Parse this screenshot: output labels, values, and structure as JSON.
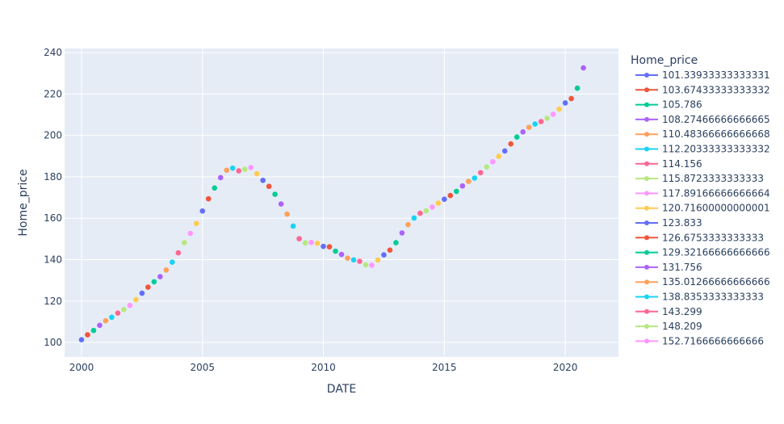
{
  "chart_data": {
    "type": "scatter",
    "title": "",
    "xlabel": "DATE",
    "ylabel": "Home_price",
    "xlim": [
      1999.3,
      2022.2
    ],
    "ylim": [
      93,
      242
    ],
    "x_ticks": [
      2000,
      2005,
      2010,
      2015,
      2020
    ],
    "y_ticks": [
      100,
      120,
      140,
      160,
      180,
      200,
      220,
      240
    ],
    "grid": true,
    "legend_placement": "right",
    "legend_title": "Home_price",
    "palette": [
      "#636efa",
      "#EF553B",
      "#00cc96",
      "#ab63fa",
      "#FFA15A",
      "#19d3f3",
      "#FF6692",
      "#B6E880",
      "#FF97FF",
      "#FECB52"
    ],
    "background": "#E5ECF6",
    "legend": [
      "101.33933333333331",
      "103.67433333333332",
      "105.786",
      "108.27466666666665",
      "110.48366666666668",
      "112.20333333333332",
      "114.156",
      "115.8723333333333",
      "117.89166666666664",
      "120.71600000000001",
      "123.833",
      "126.6753333333333",
      "129.32166666666666",
      "131.756",
      "135.01266666666666",
      "138.8353333333333",
      "143.299",
      "148.209",
      "152.7166666666666"
    ],
    "points": [
      {
        "x": 2000.0,
        "y": 101.3
      },
      {
        "x": 2000.25,
        "y": 103.7
      },
      {
        "x": 2000.5,
        "y": 105.8
      },
      {
        "x": 2000.75,
        "y": 108.3
      },
      {
        "x": 2001.0,
        "y": 110.5
      },
      {
        "x": 2001.25,
        "y": 112.2
      },
      {
        "x": 2001.5,
        "y": 114.2
      },
      {
        "x": 2001.75,
        "y": 115.9
      },
      {
        "x": 2002.0,
        "y": 117.9
      },
      {
        "x": 2002.25,
        "y": 120.7
      },
      {
        "x": 2002.5,
        "y": 123.8
      },
      {
        "x": 2002.75,
        "y": 126.7
      },
      {
        "x": 2003.0,
        "y": 129.3
      },
      {
        "x": 2003.25,
        "y": 131.8
      },
      {
        "x": 2003.5,
        "y": 135.0
      },
      {
        "x": 2003.75,
        "y": 138.8
      },
      {
        "x": 2004.0,
        "y": 143.3
      },
      {
        "x": 2004.25,
        "y": 148.2
      },
      {
        "x": 2004.5,
        "y": 152.7
      },
      {
        "x": 2004.75,
        "y": 157.5
      },
      {
        "x": 2005.0,
        "y": 163.5
      },
      {
        "x": 2005.25,
        "y": 169.4
      },
      {
        "x": 2005.5,
        "y": 174.6
      },
      {
        "x": 2005.75,
        "y": 179.6
      },
      {
        "x": 2006.0,
        "y": 183.2
      },
      {
        "x": 2006.25,
        "y": 184.2
      },
      {
        "x": 2006.5,
        "y": 182.9
      },
      {
        "x": 2006.75,
        "y": 183.6
      },
      {
        "x": 2007.0,
        "y": 184.5
      },
      {
        "x": 2007.25,
        "y": 181.5
      },
      {
        "x": 2007.5,
        "y": 178.3
      },
      {
        "x": 2007.75,
        "y": 175.4
      },
      {
        "x": 2008.0,
        "y": 171.6
      },
      {
        "x": 2008.25,
        "y": 166.9
      },
      {
        "x": 2008.5,
        "y": 162.0
      },
      {
        "x": 2008.75,
        "y": 156.2
      },
      {
        "x": 2009.0,
        "y": 150.1
      },
      {
        "x": 2009.25,
        "y": 148.1
      },
      {
        "x": 2009.5,
        "y": 148.3
      },
      {
        "x": 2009.75,
        "y": 147.9
      },
      {
        "x": 2010.0,
        "y": 146.4
      },
      {
        "x": 2010.25,
        "y": 146.2
      },
      {
        "x": 2010.5,
        "y": 144.1
      },
      {
        "x": 2010.75,
        "y": 142.5
      },
      {
        "x": 2011.0,
        "y": 140.7
      },
      {
        "x": 2011.25,
        "y": 139.9
      },
      {
        "x": 2011.5,
        "y": 139.2
      },
      {
        "x": 2011.75,
        "y": 137.5
      },
      {
        "x": 2012.0,
        "y": 137.3
      },
      {
        "x": 2012.25,
        "y": 139.8
      },
      {
        "x": 2012.5,
        "y": 142.3
      },
      {
        "x": 2012.75,
        "y": 144.6
      },
      {
        "x": 2013.0,
        "y": 148.2
      },
      {
        "x": 2013.25,
        "y": 152.9
      },
      {
        "x": 2013.5,
        "y": 156.9
      },
      {
        "x": 2013.75,
        "y": 160.1
      },
      {
        "x": 2014.0,
        "y": 162.4
      },
      {
        "x": 2014.25,
        "y": 163.6
      },
      {
        "x": 2014.5,
        "y": 165.4
      },
      {
        "x": 2014.75,
        "y": 167.3
      },
      {
        "x": 2015.0,
        "y": 169.2
      },
      {
        "x": 2015.25,
        "y": 171.0
      },
      {
        "x": 2015.5,
        "y": 173.0
      },
      {
        "x": 2015.75,
        "y": 175.6
      },
      {
        "x": 2016.0,
        "y": 177.8
      },
      {
        "x": 2016.25,
        "y": 179.4
      },
      {
        "x": 2016.5,
        "y": 182.0
      },
      {
        "x": 2016.75,
        "y": 184.8
      },
      {
        "x": 2017.0,
        "y": 187.3
      },
      {
        "x": 2017.25,
        "y": 189.9
      },
      {
        "x": 2017.5,
        "y": 192.5
      },
      {
        "x": 2017.75,
        "y": 195.9
      },
      {
        "x": 2018.0,
        "y": 199.2
      },
      {
        "x": 2018.25,
        "y": 201.7
      },
      {
        "x": 2018.5,
        "y": 203.9
      },
      {
        "x": 2018.75,
        "y": 205.5
      },
      {
        "x": 2019.0,
        "y": 206.7
      },
      {
        "x": 2019.25,
        "y": 208.3
      },
      {
        "x": 2019.5,
        "y": 210.2
      },
      {
        "x": 2019.75,
        "y": 212.7
      },
      {
        "x": 2020.0,
        "y": 215.7
      },
      {
        "x": 2020.25,
        "y": 217.8
      },
      {
        "x": 2020.5,
        "y": 222.8
      },
      {
        "x": 2020.75,
        "y": 232.6
      }
    ]
  }
}
